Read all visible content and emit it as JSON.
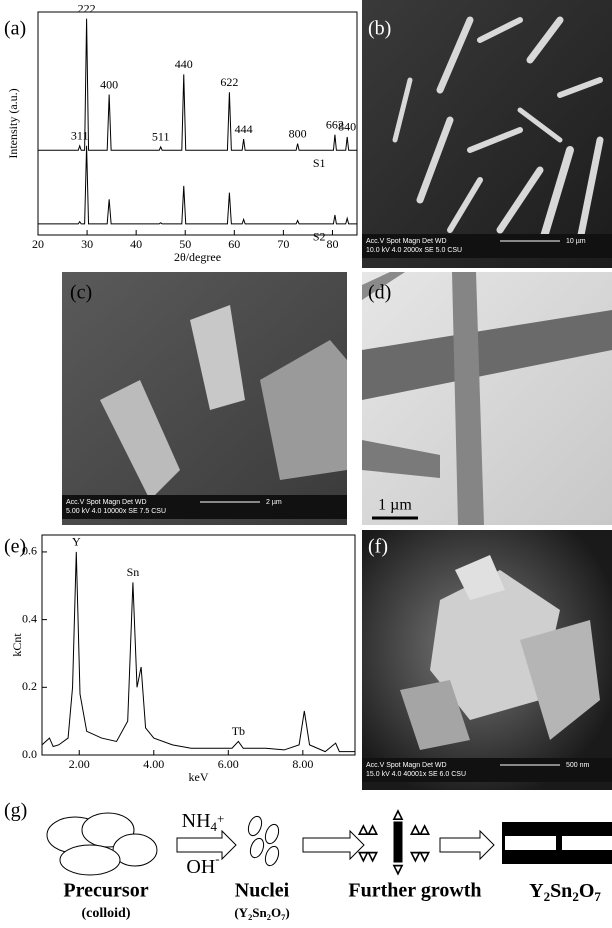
{
  "panel_labels": [
    "(a)",
    "(b)",
    "(c)",
    "(d)",
    "(e)",
    "(f)",
    "(g)"
  ],
  "chart_data": [
    {
      "type": "line",
      "xlabel": "2θ/degree",
      "ylabel": "Intensity (a.u.)",
      "xlim": [
        20,
        85
      ],
      "xticks": [
        20,
        30,
        40,
        50,
        60,
        70,
        80
      ],
      "ylim": [
        0,
        100
      ],
      "peak_labels": [
        "311",
        "222",
        "400",
        "511",
        "440",
        "622",
        "444",
        "800",
        "662",
        "840"
      ],
      "series": [
        {
          "name": "S1",
          "color": "#000",
          "x": [
            20,
            28.2,
            28.5,
            28.8,
            29.5,
            29.9,
            30.3,
            34.1,
            34.5,
            34.9,
            44.7,
            45,
            45.3,
            49.3,
            49.7,
            50.1,
            58.6,
            59,
            59.4,
            61.6,
            61.9,
            62.2,
            72.6,
            72.9,
            73.2,
            80.2,
            80.5,
            80.8,
            82.7,
            83,
            83.3,
            85
          ],
          "values": [
            38,
            38,
            40,
            38,
            38,
            97,
            38,
            38,
            63,
            38,
            38,
            39.5,
            38,
            38,
            72,
            38,
            38,
            64,
            38,
            38,
            43,
            38,
            38,
            41,
            38,
            38,
            45,
            38,
            38,
            44,
            38,
            38
          ]
        },
        {
          "name": "S2",
          "color": "#000",
          "x": [
            20,
            28.2,
            28.5,
            28.8,
            29.5,
            29.9,
            30.3,
            34.1,
            34.5,
            34.9,
            44.7,
            45,
            45.3,
            49.3,
            49.7,
            50.1,
            58.6,
            59,
            59.4,
            61.6,
            61.9,
            62.2,
            72.6,
            72.9,
            73.2,
            80.2,
            80.5,
            80.8,
            82.7,
            83,
            83.3,
            85
          ],
          "values": [
            5,
            5,
            6,
            5,
            5,
            40,
            5,
            5,
            16,
            5,
            5,
            5.5,
            5,
            5,
            22,
            5,
            5,
            19,
            5,
            5,
            7,
            5,
            5,
            6.5,
            5,
            5,
            9,
            5,
            5,
            7.5,
            5,
            5
          ]
        }
      ]
    },
    {
      "type": "line",
      "xlabel": "keV",
      "ylabel": "kCnt",
      "xlim": [
        1,
        9.4
      ],
      "ylim": [
        0,
        0.65
      ],
      "xticks": [
        {
          "value": 2,
          "label": "2.00"
        },
        {
          "value": 4,
          "label": "4.00"
        },
        {
          "value": 6,
          "label": "6.00"
        },
        {
          "value": 8,
          "label": "8.00"
        }
      ],
      "yticks": [
        {
          "value": 0,
          "label": "0.0"
        },
        {
          "value": 0.2,
          "label": "0.2"
        },
        {
          "value": 0.4,
          "label": "0.4"
        },
        {
          "value": 0.6,
          "label": "0.6"
        }
      ],
      "peak_labels": [
        "Y",
        "Sn",
        "Tb"
      ],
      "series": [
        {
          "color": "#000",
          "x": [
            1.0,
            1.2,
            1.3,
            1.45,
            1.7,
            1.82,
            1.92,
            2.02,
            2.2,
            2.6,
            3.0,
            3.3,
            3.44,
            3.55,
            3.66,
            3.78,
            4.0,
            4.5,
            5.0,
            5.5,
            6.1,
            6.27,
            6.4,
            7.0,
            7.5,
            7.9,
            8.04,
            8.18,
            8.6,
            8.88,
            8.98,
            9.4
          ],
          "values": [
            0.03,
            0.05,
            0.025,
            0.03,
            0.05,
            0.2,
            0.6,
            0.18,
            0.07,
            0.05,
            0.04,
            0.1,
            0.51,
            0.2,
            0.26,
            0.08,
            0.05,
            0.03,
            0.02,
            0.02,
            0.02,
            0.04,
            0.02,
            0.02,
            0.015,
            0.03,
            0.13,
            0.03,
            0.01,
            0.035,
            0.01,
            0.01
          ]
        }
      ]
    }
  ],
  "micrographs": {
    "b": {
      "header": "Acc.V  Spot Magn    Det  WD",
      "info": "10.0 kV 4.0   2000x    SE   5.0    CSU",
      "scale": "10 µm"
    },
    "c": {
      "header": "Acc.V  Spot Magn    Det  WD",
      "info": "5.00 kV 4.0  10000x   SE   7.5    CSU",
      "scale": "2 µm"
    },
    "d": {
      "scale": "1 µm"
    },
    "f": {
      "header": "Acc.V  Spot Magn    Det  WD",
      "info": "15.0 kV 4.0  40001x   SE   6.0    CSU",
      "scale": "500 nm"
    }
  },
  "scheme": {
    "reagent_1": [
      "NH",
      "4",
      "+"
    ],
    "reagent_2": [
      "OH",
      "-"
    ],
    "precursor": "Precursor",
    "precursor_note": "(colloid)",
    "nuclei": "Nuclei",
    "nuclei_formula": [
      "(Y",
      "2",
      "Sn",
      "2",
      "O",
      "7",
      ")"
    ],
    "growth": "Further growth",
    "product": [
      "Y",
      "2",
      "Sn",
      "2",
      "O",
      "7"
    ]
  }
}
